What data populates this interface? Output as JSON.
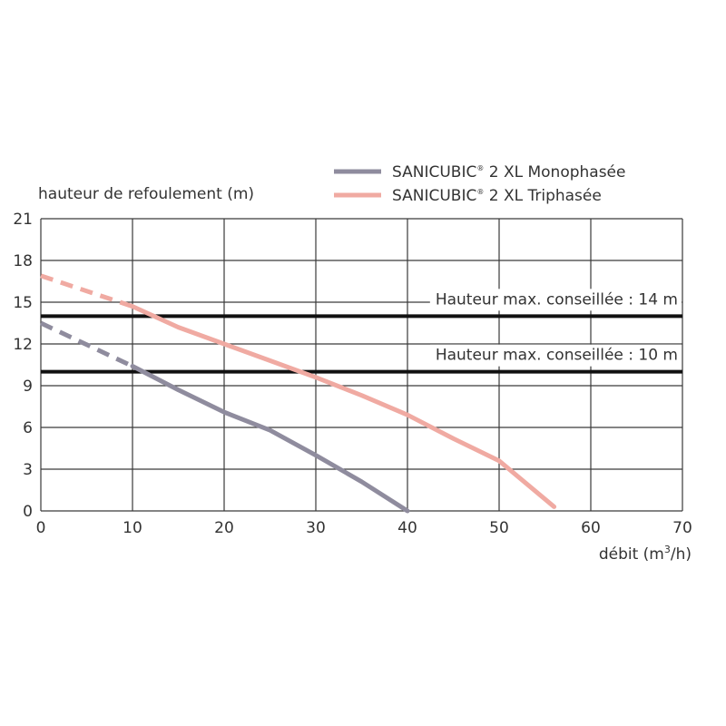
{
  "chart_data": {
    "type": "line",
    "ylabel": "hauteur de refoulement (m)",
    "xlabel_main": "débit (m",
    "xlabel_sup": "3",
    "xlabel_tail": "/h)",
    "xlim": [
      0,
      70
    ],
    "ylim": [
      0,
      21
    ],
    "x_ticks": [
      0,
      10,
      20,
      30,
      40,
      50,
      60,
      70
    ],
    "y_ticks": [
      0,
      3,
      6,
      9,
      12,
      15,
      18,
      21
    ],
    "grid": true,
    "legend_position": "top-right",
    "series": [
      {
        "name": "SANICUBIC",
        "name_reg": "®",
        "name_suffix": " 2 XL Monophasée",
        "color": "#8f8c9e",
        "dashed_segment": {
          "x": [
            0,
            10
          ],
          "y": [
            13.5,
            10.4
          ]
        },
        "x": [
          10,
          15,
          20,
          25,
          30,
          35,
          40
        ],
        "y": [
          10.4,
          8.7,
          7.1,
          5.8,
          4.0,
          2.1,
          0
        ]
      },
      {
        "name": "SANICUBIC",
        "name_reg": "®",
        "name_suffix": " 2 XL Triphasée",
        "color": "#f0aaa2",
        "dashed_segment": {
          "x": [
            0,
            10
          ],
          "y": [
            16.9,
            14.7
          ]
        },
        "x": [
          10,
          15,
          20,
          25,
          30,
          35,
          40,
          45,
          50,
          56
        ],
        "y": [
          14.7,
          13.2,
          12.0,
          10.8,
          9.6,
          8.3,
          6.9,
          5.2,
          3.6,
          0.3
        ]
      }
    ],
    "reference_lines": [
      {
        "y": 14,
        "label": "Hauteur max. conseillée : 14 m",
        "color": "#111111"
      },
      {
        "y": 10,
        "label": "Hauteur max. conseillée : 10 m",
        "color": "#111111"
      }
    ]
  }
}
